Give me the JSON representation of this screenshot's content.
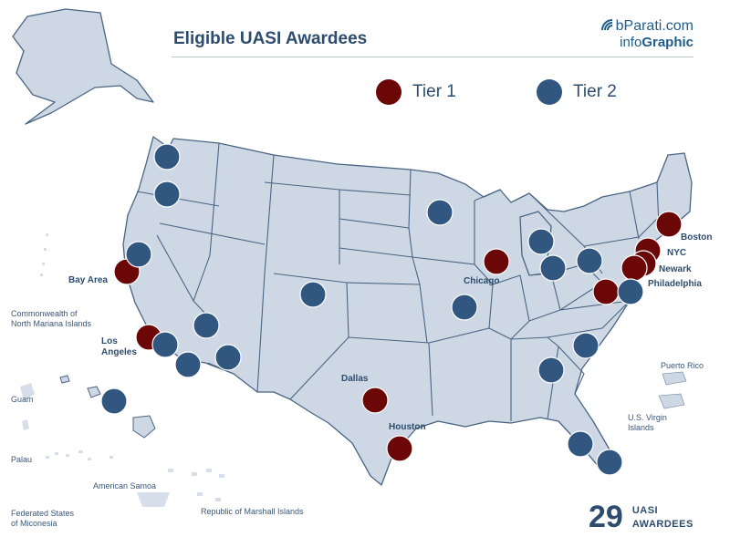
{
  "header": {
    "title": "Eligible UASI Awardees"
  },
  "brand": {
    "line1": "bParati.com",
    "line2_prefix": "info",
    "line2_bold": "Graphic"
  },
  "legend": [
    {
      "label": "Tier 1",
      "color": "#6b0707"
    },
    {
      "label": "Tier 2",
      "color": "#315780"
    }
  ],
  "colors": {
    "land": "#cdd8e4",
    "border": "#4a6484",
    "text": "#2e4d6e"
  },
  "city_labels": {
    "boston": "Boston",
    "nyc": "NYC",
    "newark": "Newark",
    "philadelphia": "Philadelphia",
    "chicago": "Chicago",
    "bay_area": "Bay Area",
    "los_angeles": "Los\nAngeles",
    "dallas": "Dallas",
    "houston": "Houston"
  },
  "territory_labels": {
    "cnmi": "Commonwealth of\nNorth Mariana Islands",
    "guam": "Guam",
    "palau": "Palau",
    "american_samoa": "American Samoa",
    "micronesia": "Federated States\nof Miconesia",
    "marshall": "Republic of Marshall Islands",
    "puerto_rico": "Puerto Rico",
    "usvi": "U.S. Virgin\nIslands"
  },
  "summary": {
    "count": "29",
    "line1": "UASI",
    "line2": "AWARDEES"
  }
}
